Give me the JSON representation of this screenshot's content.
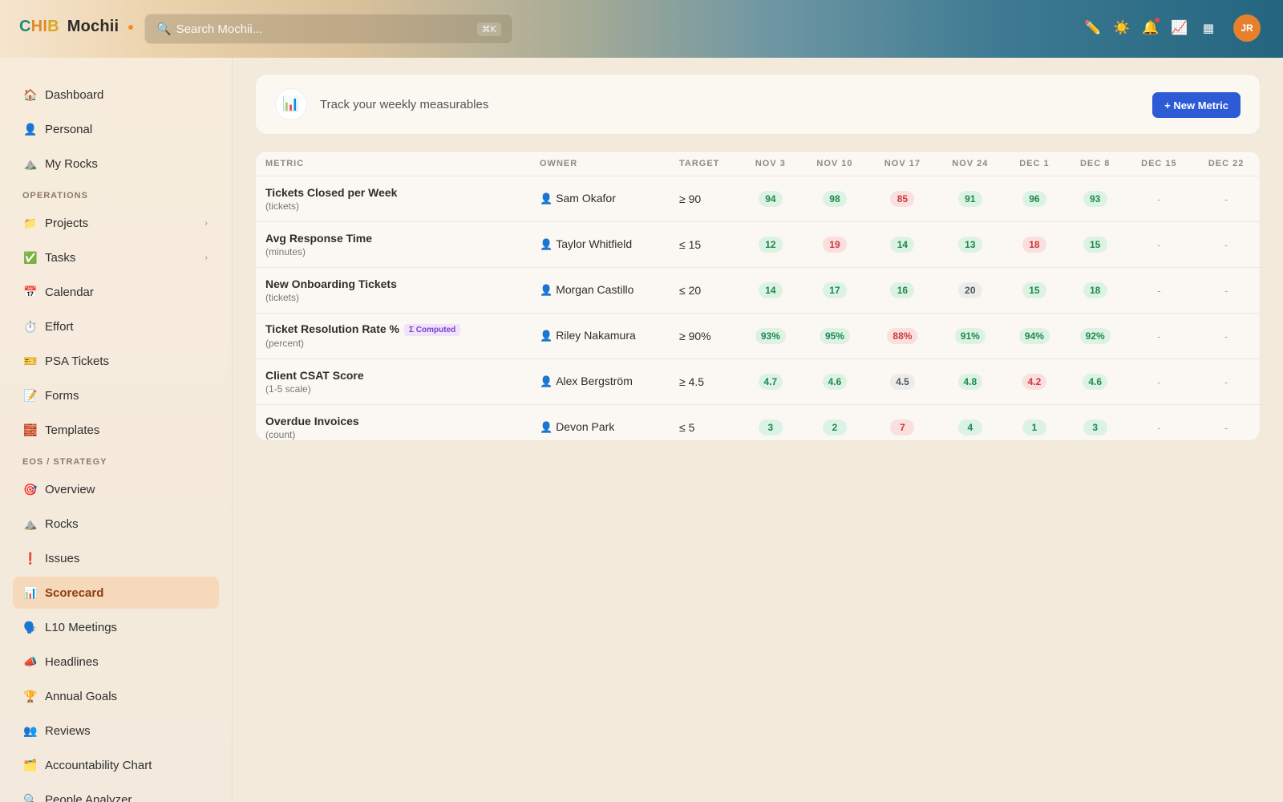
{
  "app": {
    "logo_c": "C",
    "logo_h": "H",
    "logo_i": "I",
    "logo_b": "B",
    "name": "Mochii"
  },
  "search": {
    "placeholder": "Search Mochii...",
    "shortcut": "⌘K"
  },
  "topbar": {
    "icons": [
      "pencil-icon",
      "sun-icon",
      "bell-icon",
      "chart-icon",
      "grid-icon"
    ],
    "avatar_initials": "JR"
  },
  "sidebar": {
    "top_items": [
      {
        "label": "Dashboard",
        "icon": "🏠"
      },
      {
        "label": "Personal",
        "icon": "👤"
      },
      {
        "label": "My Rocks",
        "icon": "⛰️"
      }
    ],
    "operations_label": "OPERATIONS",
    "operations_items": [
      {
        "label": "Projects",
        "icon": "📁"
      },
      {
        "label": "Tasks",
        "icon": "✅"
      },
      {
        "label": "Calendar",
        "icon": "📅"
      },
      {
        "label": "Effort",
        "icon": "⏱️"
      },
      {
        "label": "PSA Tickets",
        "icon": "🎫"
      },
      {
        "label": "Forms",
        "icon": "📝"
      },
      {
        "label": "Templates",
        "icon": "🧱"
      }
    ],
    "eos_label": "EOS / STRATEGY",
    "eos_items": [
      {
        "label": "Overview",
        "icon": "🎯"
      },
      {
        "label": "Rocks",
        "icon": "⛰️"
      },
      {
        "label": "Issues",
        "icon": "❗"
      },
      {
        "label": "Scorecard",
        "icon": "📊"
      },
      {
        "label": "L10 Meetings",
        "icon": "🗣️"
      },
      {
        "label": "Headlines",
        "icon": "📣"
      },
      {
        "label": "Annual Goals",
        "icon": "🏆"
      },
      {
        "label": "Reviews",
        "icon": "👥"
      },
      {
        "label": "Accountability Chart",
        "icon": "🗂️"
      },
      {
        "label": "People Analyzer",
        "icon": "🔍"
      }
    ],
    "active": "Scorecard"
  },
  "header": {
    "icon": "📊",
    "subtitle": "Track your weekly measurables",
    "new_button": "+ New Metric"
  },
  "table": {
    "columns": {
      "metric": "METRIC",
      "owner": "OWNER",
      "target": "TARGET",
      "weeks": [
        "NOV 3",
        "NOV 10",
        "NOV 17",
        "NOV 24",
        "DEC 1",
        "DEC 8",
        "DEC 15",
        "DEC 22"
      ]
    },
    "rows": [
      {
        "name": "Tickets Closed per Week",
        "unit": "(tickets)",
        "computed": "",
        "owner": "Sam Okafor",
        "target": "≥ 90",
        "values": [
          {
            "v": "94",
            "s": "good"
          },
          {
            "v": "98",
            "s": "good"
          },
          {
            "v": "85",
            "s": "bad"
          },
          {
            "v": "91",
            "s": "good"
          },
          {
            "v": "96",
            "s": "good"
          },
          {
            "v": "93",
            "s": "good"
          },
          {
            "v": "-",
            "s": "empty"
          },
          {
            "v": "-",
            "s": "empty"
          }
        ]
      },
      {
        "name": "Avg Response Time",
        "unit": "(minutes)",
        "computed": "",
        "owner": "Taylor Whitfield",
        "target": "≤ 15",
        "values": [
          {
            "v": "12",
            "s": "good"
          },
          {
            "v": "19",
            "s": "bad"
          },
          {
            "v": "14",
            "s": "good"
          },
          {
            "v": "13",
            "s": "good"
          },
          {
            "v": "18",
            "s": "bad"
          },
          {
            "v": "15",
            "s": "good"
          },
          {
            "v": "-",
            "s": "empty"
          },
          {
            "v": "-",
            "s": "empty"
          }
        ]
      },
      {
        "name": "New Onboarding Tickets",
        "unit": "(tickets)",
        "computed": "",
        "owner": "Morgan Castillo",
        "target": "≤ 20",
        "values": [
          {
            "v": "14",
            "s": "good"
          },
          {
            "v": "17",
            "s": "good"
          },
          {
            "v": "16",
            "s": "good"
          },
          {
            "v": "20",
            "s": "neutral"
          },
          {
            "v": "15",
            "s": "good"
          },
          {
            "v": "18",
            "s": "good"
          },
          {
            "v": "-",
            "s": "empty"
          },
          {
            "v": "-",
            "s": "empty"
          }
        ]
      },
      {
        "name": "Ticket Resolution Rate %",
        "unit": "(percent)",
        "computed": "Σ Computed",
        "owner": "Riley Nakamura",
        "target": "≥ 90%",
        "values": [
          {
            "v": "93%",
            "s": "good"
          },
          {
            "v": "95%",
            "s": "good"
          },
          {
            "v": "88%",
            "s": "bad"
          },
          {
            "v": "91%",
            "s": "good"
          },
          {
            "v": "94%",
            "s": "good"
          },
          {
            "v": "92%",
            "s": "good"
          },
          {
            "v": "-",
            "s": "empty"
          },
          {
            "v": "-",
            "s": "empty"
          }
        ]
      },
      {
        "name": "Client CSAT Score",
        "unit": "(1-5 scale)",
        "computed": "",
        "owner": "Alex Bergström",
        "target": "≥ 4.5",
        "values": [
          {
            "v": "4.7",
            "s": "good"
          },
          {
            "v": "4.6",
            "s": "good"
          },
          {
            "v": "4.5",
            "s": "neutral"
          },
          {
            "v": "4.8",
            "s": "good"
          },
          {
            "v": "4.2",
            "s": "bad"
          },
          {
            "v": "4.6",
            "s": "good"
          },
          {
            "v": "-",
            "s": "empty"
          },
          {
            "v": "-",
            "s": "empty"
          }
        ]
      },
      {
        "name": "Overdue Invoices",
        "unit": "(count)",
        "computed": "",
        "owner": "Devon Park",
        "target": "≤ 5",
        "values": [
          {
            "v": "3",
            "s": "good"
          },
          {
            "v": "2",
            "s": "good"
          },
          {
            "v": "7",
            "s": "bad"
          },
          {
            "v": "4",
            "s": "good"
          },
          {
            "v": "1",
            "s": "good"
          },
          {
            "v": "3",
            "s": "good"
          },
          {
            "v": "-",
            "s": "empty"
          },
          {
            "v": "-",
            "s": "empty"
          }
        ]
      }
    ]
  },
  "colors": {
    "accent": "#2d5bd6",
    "good": "#1e8a4c",
    "bad": "#c93b3b",
    "active_nav": "#f6d9bb"
  }
}
